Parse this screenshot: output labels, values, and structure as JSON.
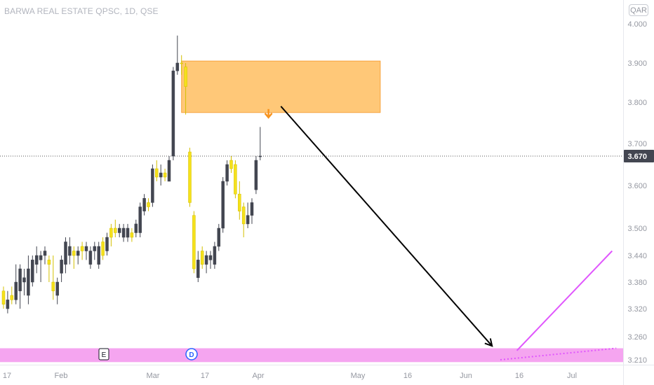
{
  "chart_data": {
    "type": "candlestick",
    "title": "BARWA REAL ESTATE QPSC, 1D, QSE",
    "currency": "QAR",
    "last_price": "3.670",
    "y_ticks": [
      "4.000",
      "3.900",
      "3.800",
      "3.700",
      "3.600",
      "3.500",
      "3.440",
      "3.380",
      "3.320",
      "3.260",
      "3.210"
    ],
    "x_ticks": [
      "17",
      "Feb",
      "Mar",
      "17",
      "Apr",
      "May",
      "16",
      "Jun",
      "16",
      "Jul"
    ],
    "events": [
      {
        "label": "E",
        "x_tick_near": "Feb"
      },
      {
        "label": "D",
        "x_tick_near": "17"
      }
    ],
    "candles": [
      {
        "o": 3.33,
        "h": 3.37,
        "l": 3.32,
        "c": 3.36,
        "color": "yellow"
      },
      {
        "o": 3.32,
        "h": 3.36,
        "l": 3.31,
        "c": 3.34,
        "color": "black"
      },
      {
        "o": 3.34,
        "h": 3.37,
        "l": 3.33,
        "c": 3.35,
        "color": "yellow"
      },
      {
        "o": 3.38,
        "h": 3.42,
        "l": 3.33,
        "c": 3.34,
        "color": "black"
      },
      {
        "o": 3.36,
        "h": 3.42,
        "l": 3.32,
        "c": 3.41,
        "color": "black"
      },
      {
        "o": 3.39,
        "h": 3.41,
        "l": 3.35,
        "c": 3.38,
        "color": "black"
      },
      {
        "o": 3.41,
        "h": 3.44,
        "l": 3.33,
        "c": 3.35,
        "color": "black"
      },
      {
        "o": 3.38,
        "h": 3.44,
        "l": 3.37,
        "c": 3.43,
        "color": "black"
      },
      {
        "o": 3.42,
        "h": 3.46,
        "l": 3.4,
        "c": 3.44,
        "color": "black"
      },
      {
        "o": 3.44,
        "h": 3.45,
        "l": 3.38,
        "c": 3.43,
        "color": "black"
      },
      {
        "o": 3.44,
        "h": 3.46,
        "l": 3.42,
        "c": 3.45,
        "color": "black"
      },
      {
        "o": 3.43,
        "h": 3.44,
        "l": 3.38,
        "c": 3.42,
        "color": "yellow"
      },
      {
        "o": 3.38,
        "h": 3.44,
        "l": 3.34,
        "c": 3.36,
        "color": "yellow"
      },
      {
        "o": 3.35,
        "h": 3.39,
        "l": 3.33,
        "c": 3.38,
        "color": "black"
      },
      {
        "o": 3.4,
        "h": 3.44,
        "l": 3.38,
        "c": 3.43,
        "color": "black"
      },
      {
        "o": 3.42,
        "h": 3.48,
        "l": 3.4,
        "c": 3.47,
        "color": "black"
      },
      {
        "o": 3.44,
        "h": 3.48,
        "l": 3.42,
        "c": 3.46,
        "color": "black"
      },
      {
        "o": 3.44,
        "h": 3.46,
        "l": 3.41,
        "c": 3.45,
        "color": "yellow"
      },
      {
        "o": 3.44,
        "h": 3.46,
        "l": 3.42,
        "c": 3.45,
        "color": "black"
      },
      {
        "o": 3.45,
        "h": 3.47,
        "l": 3.43,
        "c": 3.46,
        "color": "yellow"
      },
      {
        "o": 3.46,
        "h": 3.47,
        "l": 3.43,
        "c": 3.45,
        "color": "black"
      },
      {
        "o": 3.42,
        "h": 3.46,
        "l": 3.41,
        "c": 3.45,
        "color": "black"
      },
      {
        "o": 3.46,
        "h": 3.47,
        "l": 3.43,
        "c": 3.45,
        "color": "black"
      },
      {
        "o": 3.42,
        "h": 3.47,
        "l": 3.41,
        "c": 3.46,
        "color": "black"
      },
      {
        "o": 3.44,
        "h": 3.48,
        "l": 3.43,
        "c": 3.47,
        "color": "yellow"
      },
      {
        "o": 3.45,
        "h": 3.49,
        "l": 3.44,
        "c": 3.48,
        "color": "black"
      },
      {
        "o": 3.48,
        "h": 3.51,
        "l": 3.46,
        "c": 3.5,
        "color": "yellow"
      },
      {
        "o": 3.49,
        "h": 3.52,
        "l": 3.48,
        "c": 3.5,
        "color": "yellow"
      },
      {
        "o": 3.5,
        "h": 3.51,
        "l": 3.48,
        "c": 3.49,
        "color": "black"
      },
      {
        "o": 3.48,
        "h": 3.51,
        "l": 3.47,
        "c": 3.5,
        "color": "black"
      },
      {
        "o": 3.48,
        "h": 3.51,
        "l": 3.47,
        "c": 3.5,
        "color": "black"
      },
      {
        "o": 3.48,
        "h": 3.5,
        "l": 3.47,
        "c": 3.49,
        "color": "yellow"
      },
      {
        "o": 3.49,
        "h": 3.52,
        "l": 3.48,
        "c": 3.51,
        "color": "black"
      },
      {
        "o": 3.49,
        "h": 3.56,
        "l": 3.48,
        "c": 3.55,
        "color": "black"
      },
      {
        "o": 3.54,
        "h": 3.58,
        "l": 3.53,
        "c": 3.57,
        "color": "black"
      },
      {
        "o": 3.55,
        "h": 3.57,
        "l": 3.54,
        "c": 3.56,
        "color": "yellow"
      },
      {
        "o": 3.56,
        "h": 3.65,
        "l": 3.55,
        "c": 3.64,
        "color": "black"
      },
      {
        "o": 3.64,
        "h": 3.66,
        "l": 3.61,
        "c": 3.62,
        "color": "yellow"
      },
      {
        "o": 3.62,
        "h": 3.65,
        "l": 3.6,
        "c": 3.63,
        "color": "black"
      },
      {
        "o": 3.62,
        "h": 3.64,
        "l": 3.61,
        "c": 3.63,
        "color": "yellow"
      },
      {
        "o": 3.61,
        "h": 3.67,
        "l": 3.61,
        "c": 3.66,
        "color": "black"
      },
      {
        "o": 3.67,
        "h": 3.89,
        "l": 3.66,
        "c": 3.88,
        "color": "black"
      },
      {
        "o": 3.88,
        "h": 3.97,
        "l": 3.87,
        "c": 3.9,
        "color": "black"
      },
      {
        "o": 3.9,
        "h": 3.92,
        "l": 3.87,
        "c": 3.9,
        "color": "yellow"
      },
      {
        "o": 3.89,
        "h": 3.9,
        "l": 3.77,
        "c": 3.84,
        "color": "yellow"
      },
      {
        "o": 3.68,
        "h": 3.69,
        "l": 3.55,
        "c": 3.56,
        "color": "yellow"
      },
      {
        "o": 3.53,
        "h": 3.54,
        "l": 3.4,
        "c": 3.41,
        "color": "yellow"
      },
      {
        "o": 3.39,
        "h": 3.45,
        "l": 3.38,
        "c": 3.43,
        "color": "black"
      },
      {
        "o": 3.45,
        "h": 3.46,
        "l": 3.41,
        "c": 3.42,
        "color": "yellow"
      },
      {
        "o": 3.42,
        "h": 3.45,
        "l": 3.4,
        "c": 3.44,
        "color": "black"
      },
      {
        "o": 3.43,
        "h": 3.45,
        "l": 3.41,
        "c": 3.44,
        "color": "black"
      },
      {
        "o": 3.42,
        "h": 3.47,
        "l": 3.41,
        "c": 3.46,
        "color": "black"
      },
      {
        "o": 3.46,
        "h": 3.51,
        "l": 3.45,
        "c": 3.5,
        "color": "black"
      },
      {
        "o": 3.5,
        "h": 3.62,
        "l": 3.49,
        "c": 3.61,
        "color": "black"
      },
      {
        "o": 3.61,
        "h": 3.66,
        "l": 3.6,
        "c": 3.65,
        "color": "black"
      },
      {
        "o": 3.64,
        "h": 3.67,
        "l": 3.63,
        "c": 3.66,
        "color": "yellow"
      },
      {
        "o": 3.65,
        "h": 3.66,
        "l": 3.57,
        "c": 3.58,
        "color": "yellow"
      },
      {
        "o": 3.58,
        "h": 3.61,
        "l": 3.52,
        "c": 3.54,
        "color": "yellow"
      },
      {
        "o": 3.55,
        "h": 3.56,
        "l": 3.48,
        "c": 3.51,
        "color": "yellow"
      },
      {
        "o": 3.51,
        "h": 3.56,
        "l": 3.5,
        "c": 3.53,
        "color": "black"
      },
      {
        "o": 3.53,
        "h": 3.57,
        "l": 3.51,
        "c": 3.56,
        "color": "black"
      },
      {
        "o": 3.59,
        "h": 3.67,
        "l": 3.58,
        "c": 3.66,
        "color": "black"
      },
      {
        "o": 3.67,
        "h": 3.74,
        "l": 3.66,
        "c": 3.67,
        "color": "black"
      }
    ],
    "annotations": {
      "supply_zone": {
        "x_start_index": 43,
        "x_end_index": 91,
        "y_low": 3.775,
        "y_high": 3.905,
        "color": "#ffc878"
      },
      "down_marker": {
        "index": 64,
        "y": 3.78,
        "color": "#f7931e"
      },
      "black_arrow": {
        "from": {
          "index": 67,
          "y": 3.79
        },
        "to": {
          "index": 118,
          "y": 3.24
        }
      },
      "magenta_line": {
        "from": {
          "index": 124,
          "y": 3.23
        },
        "to": {
          "index": 147,
          "y": 3.45
        },
        "color": "#e056fd"
      },
      "magenta_dotted": {
        "from": {
          "index": 120,
          "y": 3.21
        },
        "to": {
          "index": 148,
          "y": 3.235
        },
        "color": "#e056fd"
      },
      "bottom_band": {
        "y_low": 3.205,
        "y_high": 3.235,
        "color": "#f5a5f0"
      },
      "price_line": {
        "y": 3.67
      }
    }
  }
}
